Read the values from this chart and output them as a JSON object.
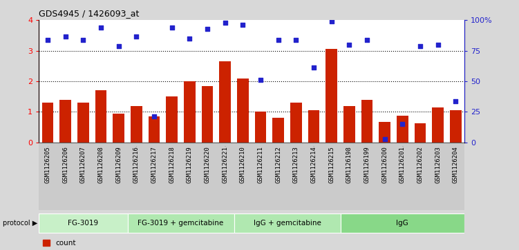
{
  "title": "GDS4945 / 1426093_at",
  "samples": [
    "GSM1126205",
    "GSM1126206",
    "GSM1126207",
    "GSM1126208",
    "GSM1126209",
    "GSM1126216",
    "GSM1126217",
    "GSM1126218",
    "GSM1126219",
    "GSM1126220",
    "GSM1126221",
    "GSM1126210",
    "GSM1126211",
    "GSM1126212",
    "GSM1126213",
    "GSM1126214",
    "GSM1126215",
    "GSM1126198",
    "GSM1126199",
    "GSM1126200",
    "GSM1126201",
    "GSM1126202",
    "GSM1126203",
    "GSM1126204"
  ],
  "bar_values": [
    1.3,
    1.4,
    1.3,
    1.7,
    0.95,
    1.2,
    0.85,
    1.5,
    2.0,
    1.85,
    2.65,
    2.1,
    1.0,
    0.8,
    1.3,
    1.05,
    3.05,
    1.2,
    1.4,
    0.68,
    0.88,
    0.62,
    1.15,
    1.05
  ],
  "dot_values": [
    3.35,
    3.45,
    3.35,
    3.75,
    3.15,
    3.45,
    0.85,
    3.75,
    3.4,
    3.7,
    3.9,
    3.85,
    2.05,
    3.35,
    3.35,
    2.45,
    3.95,
    3.2,
    3.35,
    0.1,
    0.6,
    3.15,
    3.2,
    1.35
  ],
  "bar_color": "#cc2200",
  "dot_color": "#2222cc",
  "groups": [
    {
      "label": "FG-3019",
      "start": 0,
      "end": 5
    },
    {
      "label": "FG-3019 + gemcitabine",
      "start": 5,
      "end": 11
    },
    {
      "label": "IgG + gemcitabine",
      "start": 11,
      "end": 17
    },
    {
      "label": "IgG",
      "start": 17,
      "end": 24
    }
  ],
  "proto_colors": [
    "#c8f0c8",
    "#b0e8b0",
    "#b0e8b0",
    "#88d888"
  ],
  "ylim_left": [
    0,
    4
  ],
  "ylim_right": [
    0,
    100
  ],
  "yticks_left": [
    0,
    1,
    2,
    3,
    4
  ],
  "yticks_right": [
    0,
    25,
    50,
    75,
    100
  ],
  "ytick_labels_right": [
    "0",
    "25",
    "50",
    "75",
    "100%"
  ],
  "background_color": "#d8d8d8",
  "plot_bg": "#ffffff"
}
